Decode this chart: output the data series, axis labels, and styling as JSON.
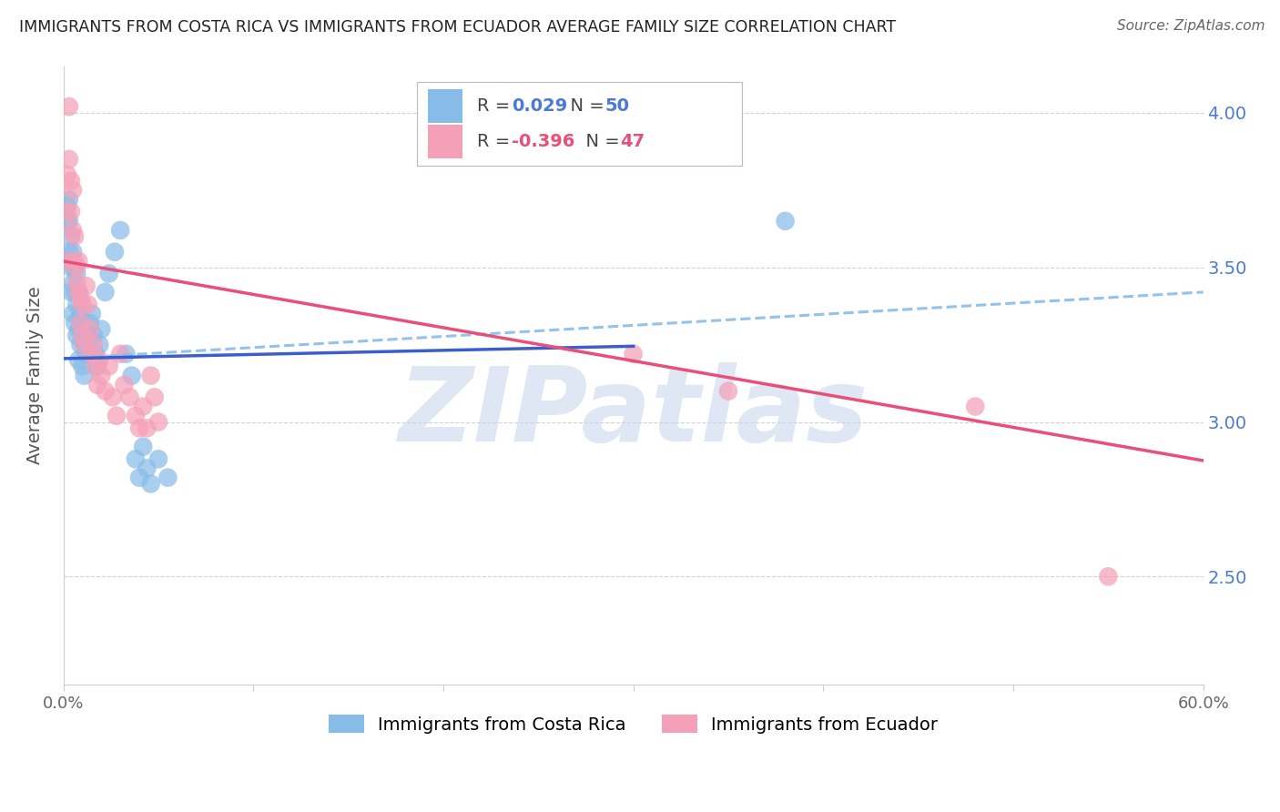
{
  "title": "IMMIGRANTS FROM COSTA RICA VS IMMIGRANTS FROM ECUADOR AVERAGE FAMILY SIZE CORRELATION CHART",
  "source": "Source: ZipAtlas.com",
  "ylabel": "Average Family Size",
  "yticks": [
    2.5,
    3.0,
    3.5,
    4.0
  ],
  "xmin": 0.0,
  "xmax": 0.6,
  "ymin": 2.15,
  "ymax": 4.15,
  "costa_rica_R": "0.029",
  "costa_rica_N": "50",
  "ecuador_R": "-0.396",
  "ecuador_N": "47",
  "costa_rica_color": "#88bce8",
  "ecuador_color": "#f4a0b8",
  "trend_costa_rica_color": "#3a5fcd",
  "trend_ecuador_color": "#e8507a",
  "dashed_line_color": "#88bce8",
  "grid_color": "#d0d0d8",
  "right_axis_color": "#4a7ad4",
  "legend_R_blue": "#4a7ad4",
  "legend_R_pink": "#e8507a",
  "watermark_color": "#c8d8ec",
  "watermark_text": "ZIPatlas",
  "background_color": "#ffffff",
  "costa_rica_trend_x0": 0.0,
  "costa_rica_trend_x1": 0.3,
  "costa_rica_trend_y0": 3.205,
  "costa_rica_trend_y1": 3.245,
  "ecuador_trend_x0": 0.0,
  "ecuador_trend_x1": 0.6,
  "ecuador_trend_y0": 3.52,
  "ecuador_trend_y1": 2.875,
  "dashed_trend_x0": 0.0,
  "dashed_trend_x1": 0.6,
  "dashed_trend_y0": 3.205,
  "dashed_trend_y1": 3.42,
  "costa_rica_x": [
    0.001,
    0.002,
    0.002,
    0.003,
    0.003,
    0.003,
    0.004,
    0.004,
    0.004,
    0.005,
    0.005,
    0.005,
    0.006,
    0.006,
    0.006,
    0.007,
    0.007,
    0.007,
    0.008,
    0.008,
    0.008,
    0.009,
    0.009,
    0.01,
    0.01,
    0.011,
    0.011,
    0.012,
    0.013,
    0.014,
    0.015,
    0.016,
    0.017,
    0.018,
    0.019,
    0.02,
    0.022,
    0.024,
    0.027,
    0.03,
    0.033,
    0.036,
    0.038,
    0.04,
    0.042,
    0.044,
    0.046,
    0.05,
    0.055,
    0.38
  ],
  "costa_rica_y": [
    3.52,
    3.7,
    3.65,
    3.72,
    3.65,
    3.55,
    3.6,
    3.5,
    3.42,
    3.55,
    3.45,
    3.35,
    3.5,
    3.42,
    3.32,
    3.48,
    3.38,
    3.28,
    3.42,
    3.3,
    3.2,
    3.35,
    3.25,
    3.28,
    3.18,
    3.25,
    3.15,
    3.22,
    3.28,
    3.32,
    3.35,
    3.28,
    3.22,
    3.18,
    3.25,
    3.3,
    3.42,
    3.48,
    3.55,
    3.62,
    3.22,
    3.15,
    2.88,
    2.82,
    2.92,
    2.85,
    2.8,
    2.88,
    2.82,
    3.65
  ],
  "ecuador_x": [
    0.001,
    0.002,
    0.002,
    0.003,
    0.003,
    0.004,
    0.004,
    0.005,
    0.005,
    0.006,
    0.006,
    0.007,
    0.007,
    0.008,
    0.008,
    0.009,
    0.009,
    0.01,
    0.01,
    0.011,
    0.012,
    0.013,
    0.014,
    0.015,
    0.016,
    0.017,
    0.018,
    0.019,
    0.02,
    0.022,
    0.024,
    0.026,
    0.028,
    0.03,
    0.032,
    0.035,
    0.038,
    0.04,
    0.042,
    0.044,
    0.046,
    0.048,
    0.05,
    0.3,
    0.35,
    0.48,
    0.55
  ],
  "ecuador_y": [
    3.52,
    3.8,
    3.68,
    4.02,
    3.85,
    3.78,
    3.68,
    3.75,
    3.62,
    3.6,
    3.52,
    3.5,
    3.45,
    3.52,
    3.42,
    3.4,
    3.32,
    3.38,
    3.28,
    3.25,
    3.44,
    3.38,
    3.3,
    3.22,
    3.25,
    3.18,
    3.12,
    3.2,
    3.15,
    3.1,
    3.18,
    3.08,
    3.02,
    3.22,
    3.12,
    3.08,
    3.02,
    2.98,
    3.05,
    2.98,
    3.15,
    3.08,
    3.0,
    3.22,
    3.1,
    3.05,
    2.5
  ]
}
